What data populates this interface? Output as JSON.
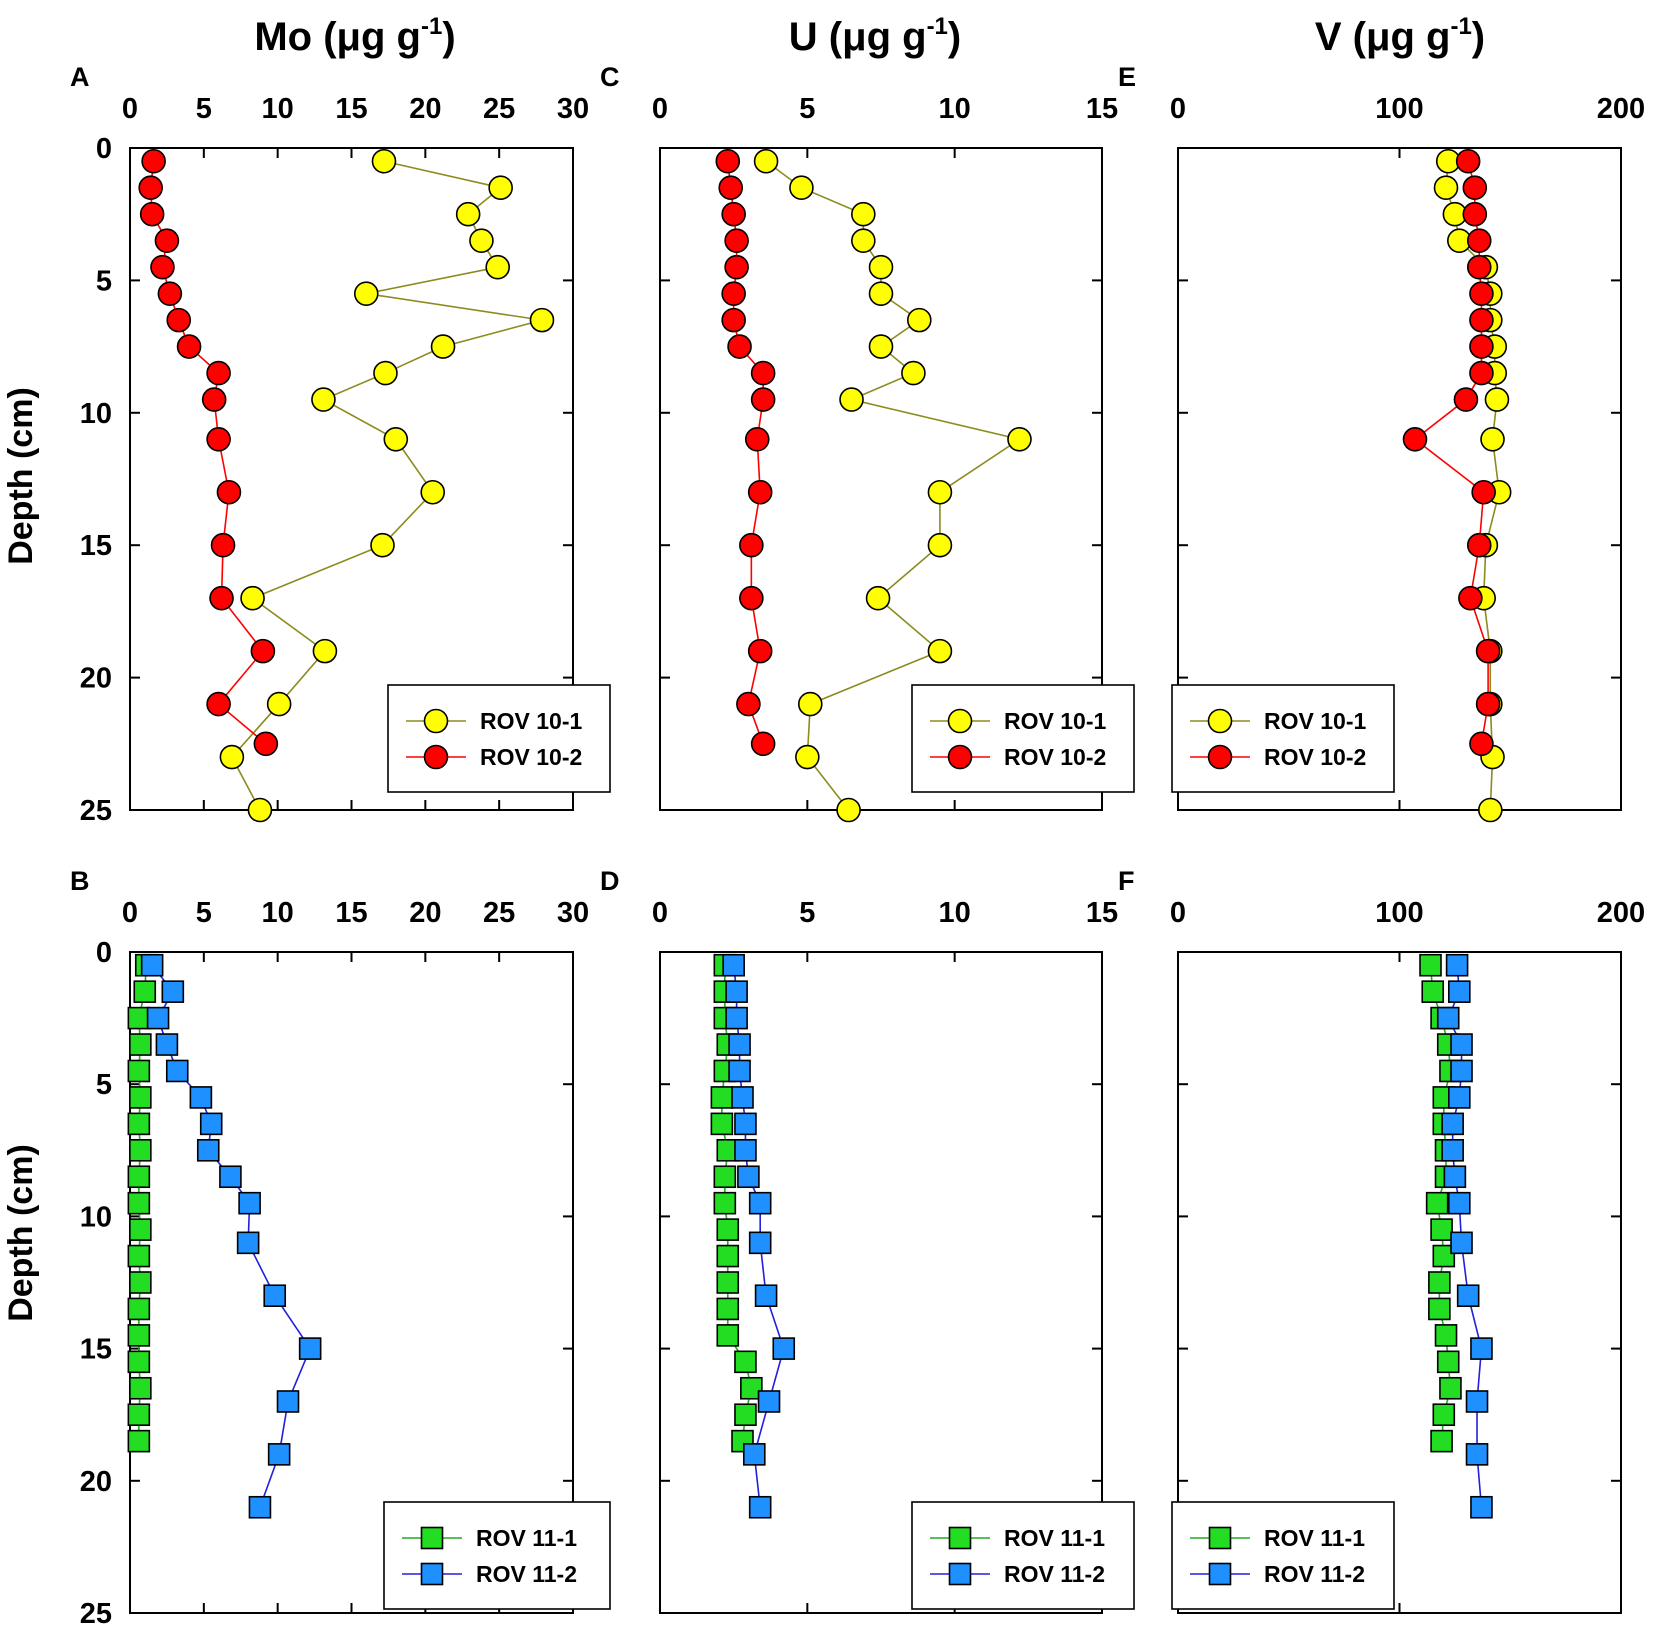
{
  "column_titles": [
    {
      "pre": "Mo (",
      "mu": "μ",
      "g": "g g",
      "sup": "-1",
      "post": ")"
    },
    {
      "pre": "U (",
      "mu": "μ",
      "g": "g g",
      "sup": "-1",
      "post": ")"
    },
    {
      "pre": "V (",
      "mu": "μ",
      "g": "g g",
      "sup": "-1",
      "post": ")"
    }
  ],
  "ylabel": "Depth (cm)",
  "colors": {
    "yellow": "#ffff00",
    "yellow_line": "#8c8c1e",
    "red": "#ff0000",
    "red_line": "#ff0000",
    "green": "#22dd22",
    "green_line": "#22aa22",
    "blue": "#1e90ff",
    "blue_line": "#2020dd"
  },
  "chart_data": [
    {
      "panel": "A",
      "type": "line",
      "element": "Mo",
      "xlim": [
        0,
        30
      ],
      "xticks": [
        0,
        5,
        10,
        15,
        20,
        25,
        30
      ],
      "ylim": [
        0,
        25
      ],
      "yticks": [
        0,
        5,
        10,
        15,
        20,
        25
      ],
      "series": [
        {
          "name": "ROV 10-1",
          "marker": "circle",
          "fill": "yellow",
          "line": "yellow_line",
          "points": [
            [
              17.2,
              0.5
            ],
            [
              25.1,
              1.5
            ],
            [
              22.9,
              2.5
            ],
            [
              23.8,
              3.5
            ],
            [
              24.9,
              4.5
            ],
            [
              16,
              5.5
            ],
            [
              27.9,
              6.5
            ],
            [
              21.2,
              7.5
            ],
            [
              17.3,
              8.5
            ],
            [
              13.1,
              9.5
            ],
            [
              18,
              11
            ],
            [
              20.5,
              13
            ],
            [
              17.1,
              15
            ],
            [
              8.3,
              17
            ],
            [
              13.2,
              19
            ],
            [
              10.1,
              21
            ],
            [
              6.9,
              23
            ],
            [
              8.8,
              25
            ]
          ]
        },
        {
          "name": "ROV 10-2",
          "marker": "circle",
          "fill": "red",
          "line": "red_line",
          "points": [
            [
              1.6,
              0.5
            ],
            [
              1.4,
              1.5
            ],
            [
              1.5,
              2.5
            ],
            [
              2.5,
              3.5
            ],
            [
              2.2,
              4.5
            ],
            [
              2.7,
              5.5
            ],
            [
              3.3,
              6.5
            ],
            [
              4,
              7.5
            ],
            [
              6,
              8.5
            ],
            [
              5.7,
              9.5
            ],
            [
              6,
              11
            ],
            [
              6.7,
              13
            ],
            [
              6.3,
              15
            ],
            [
              6.2,
              17
            ],
            [
              9,
              19
            ],
            [
              6,
              21
            ],
            [
              9.2,
              22.5
            ]
          ]
        }
      ]
    },
    {
      "panel": "C",
      "type": "line",
      "element": "U",
      "xlim": [
        0,
        15
      ],
      "xticks": [
        0,
        5,
        10,
        15
      ],
      "ylim": [
        0,
        25
      ],
      "yticks": [
        0,
        5,
        10,
        15,
        20,
        25
      ],
      "series": [
        {
          "name": "ROV 10-1",
          "marker": "circle",
          "fill": "yellow",
          "line": "yellow_line",
          "points": [
            [
              3.6,
              0.5
            ],
            [
              4.8,
              1.5
            ],
            [
              6.9,
              2.5
            ],
            [
              6.9,
              3.5
            ],
            [
              7.5,
              4.5
            ],
            [
              7.5,
              5.5
            ],
            [
              8.8,
              6.5
            ],
            [
              7.5,
              7.5
            ],
            [
              8.6,
              8.5
            ],
            [
              6.5,
              9.5
            ],
            [
              12.2,
              11
            ],
            [
              9.5,
              13
            ],
            [
              9.5,
              15
            ],
            [
              7.4,
              17
            ],
            [
              9.5,
              19
            ],
            [
              5.1,
              21
            ],
            [
              5,
              23
            ],
            [
              6.4,
              25
            ]
          ]
        },
        {
          "name": "ROV 10-2",
          "marker": "circle",
          "fill": "red",
          "line": "red_line",
          "points": [
            [
              2.3,
              0.5
            ],
            [
              2.4,
              1.5
            ],
            [
              2.5,
              2.5
            ],
            [
              2.6,
              3.5
            ],
            [
              2.6,
              4.5
            ],
            [
              2.5,
              5.5
            ],
            [
              2.5,
              6.5
            ],
            [
              2.7,
              7.5
            ],
            [
              3.5,
              8.5
            ],
            [
              3.5,
              9.5
            ],
            [
              3.3,
              11
            ],
            [
              3.4,
              13
            ],
            [
              3.1,
              15
            ],
            [
              3.1,
              17
            ],
            [
              3.4,
              19
            ],
            [
              3,
              21
            ],
            [
              3.5,
              22.5
            ]
          ]
        }
      ]
    },
    {
      "panel": "E",
      "type": "line",
      "element": "V",
      "xlim": [
        0,
        200
      ],
      "xticks": [
        0,
        100,
        200
      ],
      "ylim": [
        0,
        25
      ],
      "yticks": [
        0,
        5,
        10,
        15,
        20,
        25
      ],
      "series": [
        {
          "name": "ROV 10-1",
          "marker": "circle",
          "fill": "yellow",
          "line": "yellow_line",
          "points": [
            [
              122,
              0.5
            ],
            [
              121,
              1.5
            ],
            [
              125,
              2.5
            ],
            [
              127,
              3.5
            ],
            [
              139,
              4.5
            ],
            [
              141,
              5.5
            ],
            [
              141,
              6.5
            ],
            [
              143,
              7.5
            ],
            [
              143,
              8.5
            ],
            [
              144,
              9.5
            ],
            [
              142,
              11
            ],
            [
              145,
              13
            ],
            [
              139,
              15
            ],
            [
              138,
              17
            ],
            [
              141,
              19
            ],
            [
              141,
              21
            ],
            [
              142,
              23
            ],
            [
              141,
              25
            ]
          ]
        },
        {
          "name": "ROV 10-2",
          "marker": "circle",
          "fill": "red",
          "line": "red_line",
          "points": [
            [
              131,
              0.5
            ],
            [
              134,
              1.5
            ],
            [
              134,
              2.5
            ],
            [
              136,
              3.5
            ],
            [
              136,
              4.5
            ],
            [
              137,
              5.5
            ],
            [
              137,
              6.5
            ],
            [
              137,
              7.5
            ],
            [
              137,
              8.5
            ],
            [
              130,
              9.5
            ],
            [
              107,
              11
            ],
            [
              138,
              13
            ],
            [
              136,
              15
            ],
            [
              132,
              17
            ],
            [
              140,
              19
            ],
            [
              140,
              21
            ],
            [
              137,
              22.5
            ]
          ]
        }
      ]
    },
    {
      "panel": "B",
      "type": "line",
      "element": "Mo",
      "xlim": [
        0,
        30
      ],
      "xticks": [
        0,
        5,
        10,
        15,
        20,
        25,
        30
      ],
      "ylim": [
        0,
        25
      ],
      "yticks": [
        0,
        5,
        10,
        15,
        20,
        25
      ],
      "series": [
        {
          "name": "ROV 11-1",
          "marker": "square",
          "fill": "green",
          "line": "green_line",
          "points": [
            [
              1.1,
              0.5
            ],
            [
              1,
              1.5
            ],
            [
              0.6,
              2.5
            ],
            [
              0.7,
              3.5
            ],
            [
              0.6,
              4.5
            ],
            [
              0.7,
              5.5
            ],
            [
              0.6,
              6.5
            ],
            [
              0.7,
              7.5
            ],
            [
              0.6,
              8.5
            ],
            [
              0.6,
              9.5
            ],
            [
              0.7,
              10.5
            ],
            [
              0.6,
              11.5
            ],
            [
              0.7,
              12.5
            ],
            [
              0.6,
              13.5
            ],
            [
              0.6,
              14.5
            ],
            [
              0.6,
              15.5
            ],
            [
              0.7,
              16.5
            ],
            [
              0.6,
              17.5
            ],
            [
              0.6,
              18.5
            ]
          ]
        },
        {
          "name": "ROV 11-2",
          "marker": "square",
          "fill": "blue",
          "line": "blue_line",
          "points": [
            [
              1.5,
              0.5
            ],
            [
              2.9,
              1.5
            ],
            [
              1.9,
              2.5
            ],
            [
              2.5,
              3.5
            ],
            [
              3.2,
              4.5
            ],
            [
              4.8,
              5.5
            ],
            [
              5.5,
              6.5
            ],
            [
              5.3,
              7.5
            ],
            [
              6.8,
              8.5
            ],
            [
              8.1,
              9.5
            ],
            [
              8,
              11
            ],
            [
              9.8,
              13
            ],
            [
              12.2,
              15
            ],
            [
              10.7,
              17
            ],
            [
              10.1,
              19
            ],
            [
              8.8,
              21
            ]
          ]
        }
      ]
    },
    {
      "panel": "D",
      "type": "line",
      "element": "U",
      "xlim": [
        0,
        15
      ],
      "xticks": [
        0,
        5,
        10,
        15
      ],
      "ylim": [
        0,
        25
      ],
      "yticks": [
        0,
        5,
        10,
        15,
        20,
        25
      ],
      "series": [
        {
          "name": "ROV 11-1",
          "marker": "square",
          "fill": "green",
          "line": "green_line",
          "points": [
            [
              2.2,
              0.5
            ],
            [
              2.2,
              1.5
            ],
            [
              2.2,
              2.5
            ],
            [
              2.3,
              3.5
            ],
            [
              2.2,
              4.5
            ],
            [
              2.1,
              5.5
            ],
            [
              2.1,
              6.5
            ],
            [
              2.3,
              7.5
            ],
            [
              2.2,
              8.5
            ],
            [
              2.2,
              9.5
            ],
            [
              2.3,
              10.5
            ],
            [
              2.3,
              11.5
            ],
            [
              2.3,
              12.5
            ],
            [
              2.3,
              13.5
            ],
            [
              2.3,
              14.5
            ],
            [
              2.9,
              15.5
            ],
            [
              3.1,
              16.5
            ],
            [
              2.9,
              17.5
            ],
            [
              2.8,
              18.5
            ]
          ]
        },
        {
          "name": "ROV 11-2",
          "marker": "square",
          "fill": "blue",
          "line": "blue_line",
          "points": [
            [
              2.5,
              0.5
            ],
            [
              2.6,
              1.5
            ],
            [
              2.6,
              2.5
            ],
            [
              2.7,
              3.5
            ],
            [
              2.7,
              4.5
            ],
            [
              2.8,
              5.5
            ],
            [
              2.9,
              6.5
            ],
            [
              2.9,
              7.5
            ],
            [
              3,
              8.5
            ],
            [
              3.4,
              9.5
            ],
            [
              3.4,
              11
            ],
            [
              3.6,
              13
            ],
            [
              4.2,
              15
            ],
            [
              3.7,
              17
            ],
            [
              3.2,
              19
            ],
            [
              3.4,
              21
            ]
          ]
        }
      ]
    },
    {
      "panel": "F",
      "type": "line",
      "element": "V",
      "xlim": [
        0,
        200
      ],
      "xticks": [
        0,
        100,
        200
      ],
      "ylim": [
        0,
        25
      ],
      "yticks": [
        0,
        5,
        10,
        15,
        20,
        25
      ],
      "series": [
        {
          "name": "ROV 11-1",
          "marker": "square",
          "fill": "green",
          "line": "green_line",
          "points": [
            [
              114,
              0.5
            ],
            [
              115,
              1.5
            ],
            [
              119,
              2.5
            ],
            [
              122,
              3.5
            ],
            [
              123,
              4.5
            ],
            [
              120,
              5.5
            ],
            [
              120,
              6.5
            ],
            [
              121,
              7.5
            ],
            [
              121,
              8.5
            ],
            [
              117,
              9.5
            ],
            [
              119,
              10.5
            ],
            [
              120,
              11.5
            ],
            [
              118,
              12.5
            ],
            [
              118,
              13.5
            ],
            [
              121,
              14.5
            ],
            [
              122,
              15.5
            ],
            [
              123,
              16.5
            ],
            [
              120,
              17.5
            ],
            [
              119,
              18.5
            ]
          ]
        },
        {
          "name": "ROV 11-2",
          "marker": "square",
          "fill": "blue",
          "line": "blue_line",
          "points": [
            [
              126,
              0.5
            ],
            [
              127,
              1.5
            ],
            [
              122,
              2.5
            ],
            [
              128,
              3.5
            ],
            [
              128,
              4.5
            ],
            [
              127,
              5.5
            ],
            [
              124,
              6.5
            ],
            [
              124,
              7.5
            ],
            [
              125,
              8.5
            ],
            [
              127,
              9.5
            ],
            [
              128,
              11
            ],
            [
              131,
              13
            ],
            [
              137,
              15
            ],
            [
              135,
              17
            ],
            [
              135,
              19
            ],
            [
              137,
              21
            ]
          ]
        }
      ]
    }
  ]
}
